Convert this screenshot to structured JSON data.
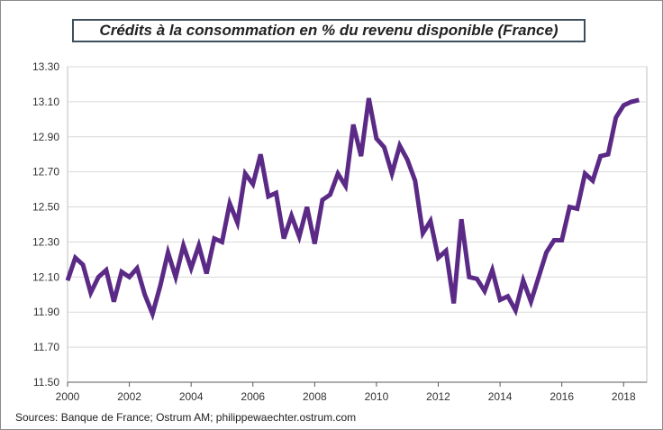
{
  "chart_data": {
    "type": "line",
    "title": "Crédits à la consommation en % du revenu disponible (France)",
    "xlabel": "",
    "ylabel": "",
    "xlim": [
      2000,
      2018.75
    ],
    "ylim": [
      11.5,
      13.3
    ],
    "yticks": [
      "11.50",
      "11.70",
      "11.90",
      "12.10",
      "12.30",
      "12.50",
      "12.70",
      "12.90",
      "13.10",
      "13.30"
    ],
    "xticks": [
      "2000",
      "2002",
      "2004",
      "2006",
      "2008",
      "2010",
      "2012",
      "2014",
      "2016",
      "2018"
    ],
    "grid": true,
    "series": [
      {
        "name": "Crédits à la consommation en % du revenu disponible",
        "color": "#5b2a86",
        "x": [
          2000.0,
          2000.25,
          2000.5,
          2000.75,
          2001.0,
          2001.25,
          2001.5,
          2001.75,
          2002.0,
          2002.25,
          2002.5,
          2002.75,
          2003.0,
          2003.25,
          2003.5,
          2003.75,
          2004.0,
          2004.25,
          2004.5,
          2004.75,
          2005.0,
          2005.25,
          2005.5,
          2005.75,
          2006.0,
          2006.25,
          2006.5,
          2006.75,
          2007.0,
          2007.25,
          2007.5,
          2007.75,
          2008.0,
          2008.25,
          2008.5,
          2008.75,
          2009.0,
          2009.25,
          2009.5,
          2009.75,
          2010.0,
          2010.25,
          2010.5,
          2010.75,
          2011.0,
          2011.25,
          2011.5,
          2011.75,
          2012.0,
          2012.25,
          2012.5,
          2012.75,
          2013.0,
          2013.25,
          2013.5,
          2013.75,
          2014.0,
          2014.25,
          2014.5,
          2014.75,
          2015.0,
          2015.25,
          2015.5,
          2015.75,
          2016.0,
          2016.25,
          2016.5,
          2016.75,
          2017.0,
          2017.25,
          2017.5,
          2017.75,
          2018.0,
          2018.25,
          2018.5
        ],
        "values": [
          12.08,
          12.21,
          12.17,
          12.01,
          12.1,
          12.14,
          11.96,
          12.13,
          12.1,
          12.15,
          12.0,
          11.89,
          12.05,
          12.24,
          12.1,
          12.28,
          12.15,
          12.28,
          12.12,
          12.32,
          12.3,
          12.52,
          12.41,
          12.69,
          12.63,
          12.8,
          12.56,
          12.58,
          12.32,
          12.45,
          12.33,
          12.5,
          12.29,
          12.54,
          12.57,
          12.69,
          12.62,
          12.97,
          12.79,
          13.12,
          12.89,
          12.84,
          12.69,
          12.85,
          12.77,
          12.65,
          12.35,
          12.42,
          12.21,
          12.25,
          11.95,
          12.43,
          12.1,
          12.09,
          12.02,
          12.14,
          11.97,
          11.99,
          11.91,
          12.08,
          11.96,
          12.1,
          12.24,
          12.31,
          12.31,
          12.5,
          12.49,
          12.69,
          12.65,
          12.79,
          12.8,
          13.01,
          13.08,
          13.1,
          13.11
        ]
      }
    ]
  },
  "source": "Sources: Banque de France; Ostrum AM; philippewaechter.ostrum.com"
}
